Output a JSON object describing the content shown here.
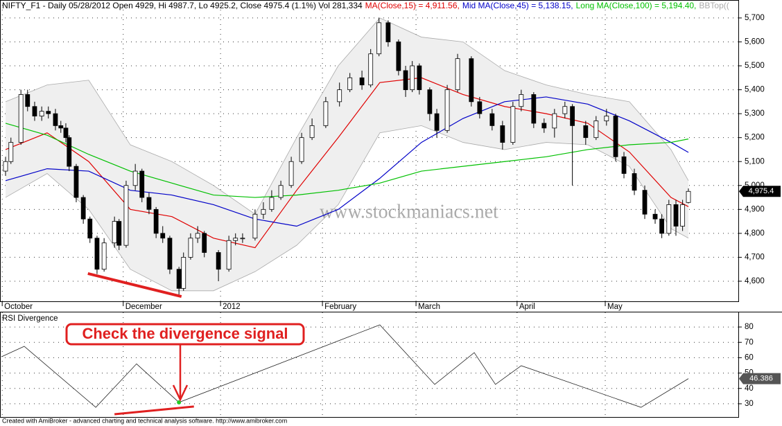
{
  "chart_data": [
    {
      "type": "candlestick",
      "title": "NIFTY_F1 - Daily 05/28/2012 Open 4929, Hi 4987.7, Lo 4925.2, Close 4975.4 (1.1%) Vol 281,334",
      "x": [
        0,
        1.3,
        3.7,
        5.3,
        7,
        8.7,
        10.3,
        12,
        13.3,
        14.5,
        15.3,
        17,
        18.7,
        20.3,
        22,
        23.7,
        26.2,
        27.3,
        29,
        31.2,
        32.8,
        34.5,
        36.2,
        37.8,
        39.5,
        41.7,
        42.8,
        44.5,
        46.2,
        47.8,
        51.2,
        53.7,
        55.3,
        57,
        60,
        62,
        64,
        66.2,
        68.7,
        71.2,
        73.7,
        77,
        80.3,
        82.8,
        85.7,
        87.8,
        89.8,
        92,
        94.5,
        96.2,
        97.8,
        99.5,
        102,
        103.7,
        106.2,
        108.7,
        112,
        114,
        117,
        119.5,
        122,
        124,
        127,
        129.5,
        132,
        134.5,
        136.3,
        139.5,
        142,
        144.5,
        146.7,
        148.7,
        151.2,
        153.7,
        156.2,
        157.8,
        159.5,
        161.2,
        162.8,
        164.2
      ],
      "open": [
        5060,
        5100,
        5180,
        5380,
        5330,
        5290,
        5310,
        5300,
        5250,
        5240,
        5200,
        5080,
        4950,
        4860,
        4780,
        4650,
        4760,
        4850,
        4750,
        5000,
        5060,
        4950,
        4900,
        4800,
        4780,
        4650,
        4570,
        4700,
        4780,
        4800,
        4720,
        4650,
        4770,
        4780,
        4780,
        4880,
        4900,
        4950,
        5000,
        5100,
        5200,
        5250,
        5350,
        5400,
        5450,
        5420,
        5550,
        5680,
        5600,
        5480,
        5400,
        5500,
        5400,
        5300,
        5230,
        5400,
        5530,
        5350,
        5300,
        5250,
        5180,
        5330,
        5380,
        5260,
        5240,
        5300,
        5330,
        5250,
        5200,
        5270,
        5290,
        5120,
        5050,
        4980,
        4880,
        4860,
        4800,
        4920,
        4830,
        4929
      ],
      "high": [
        5120,
        5200,
        5400,
        5400,
        5350,
        5330,
        5330,
        5320,
        5270,
        5260,
        5210,
        5090,
        4960,
        4870,
        4790,
        4780,
        4870,
        4860,
        5020,
        5090,
        5070,
        4970,
        4910,
        4830,
        4790,
        4660,
        4720,
        4800,
        4830,
        4810,
        4730,
        4790,
        4800,
        4800,
        4900,
        4930,
        4980,
        5020,
        5120,
        5220,
        5280,
        5370,
        5430,
        5470,
        5480,
        5570,
        5700,
        5690,
        5610,
        5500,
        5520,
        5510,
        5410,
        5320,
        5420,
        5550,
        5540,
        5370,
        5320,
        5270,
        5350,
        5400,
        5390,
        5280,
        5320,
        5350,
        5340,
        5270,
        5290,
        5320,
        5300,
        5140,
        5070,
        5000,
        4900,
        4880,
        4940,
        4940,
        4940,
        4987.7
      ],
      "low": [
        5040,
        5090,
        5170,
        5310,
        5270,
        5270,
        5280,
        5230,
        5220,
        5180,
        5060,
        4930,
        4840,
        4760,
        4630,
        4640,
        4740,
        4730,
        4740,
        4980,
        4930,
        4880,
        4780,
        4760,
        4630,
        4540,
        4560,
        4690,
        4760,
        4700,
        4600,
        4640,
        4750,
        4760,
        4770,
        4860,
        4890,
        4940,
        4990,
        5090,
        5190,
        5240,
        5330,
        5390,
        5400,
        5410,
        5540,
        5580,
        5460,
        5370,
        5390,
        5380,
        5270,
        5200,
        5220,
        5390,
        5330,
        5280,
        5230,
        5150,
        5170,
        5310,
        5240,
        5220,
        5200,
        5280,
        5000,
        5170,
        5190,
        5250,
        5100,
        5030,
        4960,
        4860,
        4840,
        4780,
        4790,
        4790,
        4810,
        4925.2
      ],
      "close": [
        5100,
        5180,
        5380,
        5330,
        5290,
        5310,
        5300,
        5250,
        5240,
        5200,
        5080,
        4950,
        4860,
        4780,
        4650,
        4760,
        4850,
        4750,
        5000,
        5060,
        4950,
        4900,
        4800,
        4780,
        4650,
        4570,
        4700,
        4780,
        4800,
        4720,
        4650,
        4770,
        4780,
        4780,
        4880,
        4900,
        4950,
        5000,
        5100,
        5200,
        5250,
        5350,
        5400,
        5450,
        5420,
        5550,
        5680,
        5600,
        5480,
        5400,
        5500,
        5400,
        5300,
        5230,
        5400,
        5530,
        5350,
        5300,
        5250,
        5180,
        5330,
        5380,
        5260,
        5240,
        5300,
        5330,
        5250,
        5200,
        5270,
        5290,
        5120,
        5050,
        4980,
        4880,
        4860,
        4800,
        4920,
        4830,
        4920,
        4975.4
      ],
      "band": {
        "name": "BBTop((",
        "color": "#aaaaaa",
        "x": [
          0,
          10,
          20,
          30,
          40,
          50,
          60,
          70,
          80,
          90,
          100,
          110,
          120,
          130,
          140,
          150,
          160,
          164.2
        ],
        "upper": [
          5350,
          5420,
          5440,
          5170,
          5100,
          5000,
          4880,
          5200,
          5500,
          5700,
          5620,
          5600,
          5480,
          5420,
          5380,
          5350,
          5150,
          5020
        ],
        "lower": [
          4950,
          5050,
          4900,
          4650,
          4560,
          4560,
          4640,
          4750,
          4920,
          5220,
          5250,
          5180,
          5150,
          5180,
          5170,
          5080,
          4820,
          4780
        ]
      },
      "lines": [
        {
          "name": "MA(Close,15) = 4,911.56,",
          "color": "#e00000",
          "x": [
            0,
            10,
            20,
            30,
            40,
            50,
            60,
            70,
            80,
            90,
            100,
            110,
            120,
            130,
            140,
            150,
            160,
            164.2
          ],
          "values": [
            5150,
            5220,
            5100,
            4900,
            4870,
            4780,
            4740,
            4980,
            5200,
            5430,
            5450,
            5380,
            5330,
            5300,
            5260,
            5140,
            4950,
            4911.56
          ]
        },
        {
          "name": "Mid MA(Close,45) = 5,138.15,",
          "color": "#0000c8",
          "x": [
            0,
            10,
            20,
            30,
            40,
            50,
            60,
            70,
            80,
            90,
            100,
            110,
            120,
            130,
            140,
            150,
            160,
            164.2
          ],
          "values": [
            5020,
            5070,
            5060,
            4980,
            4960,
            4920,
            4860,
            4830,
            4900,
            5030,
            5180,
            5280,
            5350,
            5370,
            5340,
            5270,
            5180,
            5138.15
          ]
        },
        {
          "name": "Long MA(Close,100) = 5,194.40,",
          "color": "#00c000",
          "x": [
            0,
            10,
            20,
            30,
            40,
            50,
            60,
            70,
            80,
            90,
            100,
            110,
            120,
            130,
            140,
            150,
            160,
            164.2
          ],
          "values": [
            5260,
            5210,
            5130,
            5060,
            5010,
            4960,
            4950,
            4960,
            4980,
            5010,
            5060,
            5080,
            5100,
            5120,
            5150,
            5170,
            5180,
            5194.4
          ]
        }
      ],
      "xlim": [
        -1.33,
        176.2
      ],
      "ylim": [
        4516,
        5775
      ],
      "yticks": [
        {
          "value": 4600,
          "label": "4,600"
        },
        {
          "value": 4700,
          "label": "4,700"
        },
        {
          "value": 4800,
          "label": "4,800"
        },
        {
          "value": 4900,
          "label": "4,900"
        },
        {
          "value": 5000,
          "label": "5,000"
        },
        {
          "value": 5100,
          "label": "5,100"
        },
        {
          "value": 5200,
          "label": "5,200"
        },
        {
          "value": 5300,
          "label": "5,300"
        },
        {
          "value": 5400,
          "label": "5,400"
        },
        {
          "value": 5500,
          "label": "5,500"
        },
        {
          "value": 5600,
          "label": "5,600"
        },
        {
          "value": 5700,
          "label": "5,700"
        }
      ],
      "xticks": [
        {
          "value": -0.8,
          "label": "October"
        },
        {
          "value": 28.3,
          "label": "December"
        },
        {
          "value": 51.7,
          "label": "2012"
        },
        {
          "value": 76.2,
          "label": "February"
        },
        {
          "value": 98.7,
          "label": "March"
        },
        {
          "value": 123,
          "label": "April"
        },
        {
          "value": 144.2,
          "label": "May"
        }
      ],
      "grid": true,
      "last_value": {
        "value": 4975.4,
        "label": "4,975.4"
      },
      "watermark": "www.stockmaniacs.net",
      "trendline": {
        "color": "#e02020",
        "x": [
          19.8,
          42.3
        ],
        "values": [
          4632,
          4536
        ]
      }
    },
    {
      "type": "line",
      "title": "RSI Divergence",
      "series": [
        {
          "color": "#222222",
          "x": [
            -1,
            4.5,
            21.7,
            31.5,
            41.7,
            90,
            103.2,
            112.7,
            117.8,
            124,
            152.8,
            164.2
          ],
          "values": [
            60.6,
            67.4,
            27.7,
            56,
            30.9,
            81.4,
            42.6,
            63.3,
            42.6,
            54.8,
            27.7,
            46.386
          ]
        }
      ],
      "xlim": [
        -1.33,
        176.2
      ],
      "ylim": [
        22.3,
        89.5
      ],
      "yticks": [
        30,
        40,
        50,
        60,
        70,
        80
      ],
      "grid": true,
      "last_value": 46.386,
      "signal": {
        "x": 41.7,
        "value": 30.9,
        "color": "#22cc22"
      },
      "trendline": {
        "color": "#e02020",
        "x": [
          26.2,
          45.3
        ],
        "values": [
          23.2,
          28.2
        ]
      },
      "annotation": "Check the divergence signal"
    }
  ],
  "footer": "Created with AmiBroker - advanced charting and technical analysis software. http://www.amibroker.com"
}
